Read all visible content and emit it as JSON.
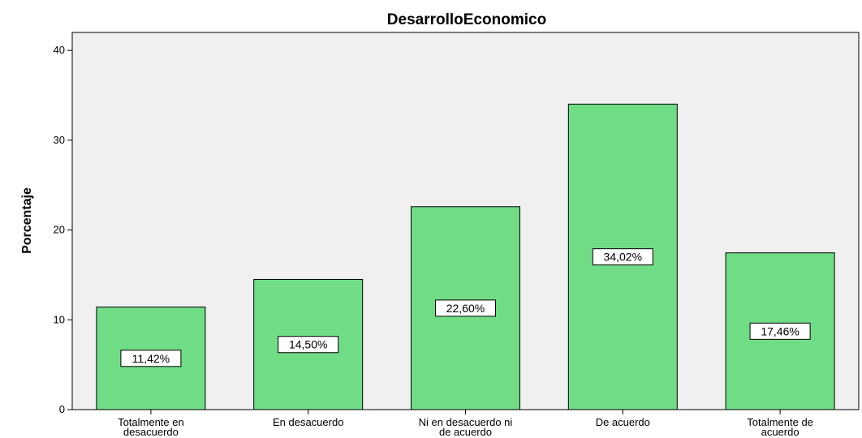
{
  "chart_data": {
    "type": "bar",
    "title": "DesarrolloEconomico",
    "xlabel": "",
    "ylabel": "Porcentaje",
    "ylim": [
      0,
      42
    ],
    "yticks": [
      0,
      10,
      20,
      30,
      40
    ],
    "categories": [
      [
        "Totalmente en",
        "desacuerdo"
      ],
      [
        "En desacuerdo"
      ],
      [
        "Ni en desacuerdo ni",
        "de acuerdo"
      ],
      [
        "De acuerdo"
      ],
      [
        "Totalmente de",
        "acuerdo"
      ]
    ],
    "values": [
      11.42,
      14.5,
      22.6,
      34.02,
      17.46
    ],
    "data_labels": [
      "11,42%",
      "14,50%",
      "22,60%",
      "34,02%",
      "17,46%"
    ],
    "bar_color": "#70dc86",
    "plot_background": "#f0f0f0",
    "grid": false,
    "legend": "none"
  }
}
